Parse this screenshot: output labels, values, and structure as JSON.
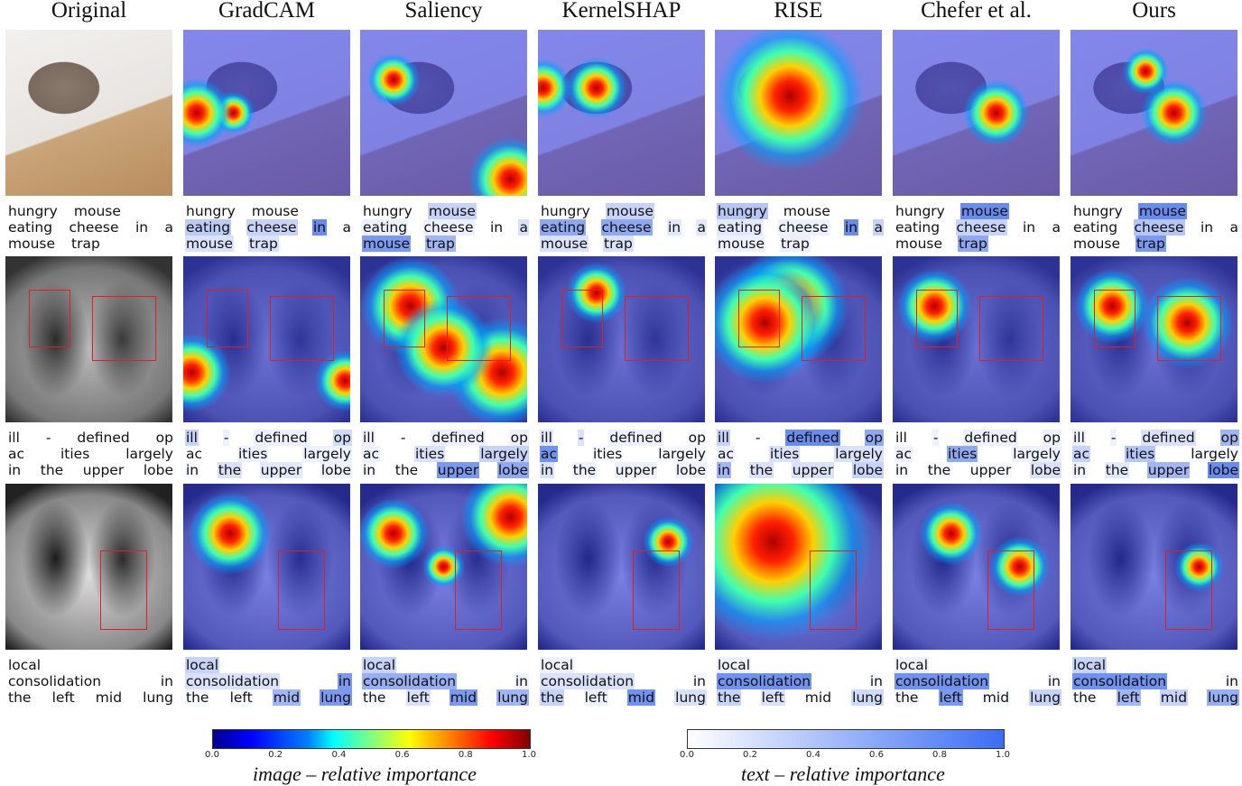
{
  "columns": [
    "Original",
    "GradCAM",
    "Saliency",
    "KernelSHAP",
    "RISE",
    "Chefer et al.",
    "Ours"
  ],
  "rows": [
    {
      "lines": [
        [
          "hungry",
          "mouse"
        ],
        [
          "eating",
          "cheese",
          "in",
          "a"
        ],
        [
          "mouse",
          "trap"
        ]
      ],
      "importance": [
        [
          0,
          0,
          0,
          0,
          0,
          0,
          0,
          0
        ],
        [
          0,
          0,
          0.35,
          0.3,
          0.8,
          0,
          0.2,
          0.2
        ],
        [
          0,
          0.3,
          0.1,
          0.1,
          0,
          0.2,
          0.7,
          0.5
        ],
        [
          0,
          0.3,
          0.6,
          0.6,
          0.15,
          0.15,
          0.2,
          0.2
        ],
        [
          0.4,
          0,
          0.15,
          0.1,
          0.8,
          0.3,
          0.1,
          0.1
        ],
        [
          0,
          0.8,
          0,
          0.3,
          0,
          0,
          0,
          0.6
        ],
        [
          0,
          0.8,
          0,
          0.4,
          0,
          0,
          0,
          0.7
        ]
      ]
    },
    {
      "lines": [
        [
          "ill",
          "-",
          "defined",
          "op"
        ],
        [
          "ac",
          "ities",
          "largely"
        ],
        [
          "in",
          "the",
          "upper",
          "lobe"
        ]
      ],
      "importance": [
        [
          0,
          0,
          0,
          0,
          0,
          0,
          0,
          0,
          0,
          0,
          0
        ],
        [
          0.3,
          0.1,
          0.1,
          0.25,
          0,
          0.1,
          0.1,
          0.05,
          0.2,
          0.15,
          0.1
        ],
        [
          0.1,
          0,
          0.1,
          0.1,
          0.1,
          0.2,
          0.3,
          0.05,
          0,
          0.7,
          0.6
        ],
        [
          0.15,
          0.2,
          0.1,
          0.05,
          0.75,
          0.05,
          0.05,
          0.2,
          0.1,
          0.1,
          0.1
        ],
        [
          0.3,
          0,
          0.8,
          0.6,
          0.1,
          0.2,
          0.2,
          0.5,
          0.2,
          0.2,
          0.3
        ],
        [
          0,
          0.1,
          0.1,
          0.1,
          0.1,
          0.6,
          0.1,
          0.05,
          0.05,
          0.05,
          0.2
        ],
        [
          0.1,
          0.1,
          0.2,
          0.5,
          0.3,
          0.4,
          0.05,
          0.1,
          0.15,
          0.5,
          0.8
        ]
      ]
    },
    {
      "lines": [
        [
          "local"
        ],
        [
          "consolidation",
          "in"
        ],
        [
          "the",
          "left",
          "mid",
          "lung"
        ]
      ],
      "importance": [
        [
          0,
          0,
          0,
          0,
          0,
          0,
          0
        ],
        [
          0.3,
          0.2,
          0.7,
          0.05,
          0.05,
          0.5,
          0.7
        ],
        [
          0.3,
          0.55,
          0.1,
          0.05,
          0.2,
          0.7,
          0.5
        ],
        [
          0.1,
          0.2,
          0.05,
          0.3,
          0.1,
          0.75,
          0.2
        ],
        [
          0.1,
          0.75,
          0.05,
          0.3,
          0.2,
          0,
          0.25
        ],
        [
          0.1,
          0.75,
          0.05,
          0.05,
          0.7,
          0.05,
          0.3
        ],
        [
          0.3,
          0.75,
          0.05,
          0.05,
          0.5,
          0.3,
          0.55
        ]
      ]
    }
  ],
  "colorbars": [
    {
      "label": "image – relative importance",
      "ticks": [
        "0.0",
        "0.2",
        "0.4",
        "0.6",
        "0.8",
        "1.0"
      ]
    },
    {
      "label": "text – relative importance",
      "ticks": [
        "0.0",
        "0.2",
        "0.4",
        "0.6",
        "0.8",
        "1.0"
      ]
    }
  ],
  "colors": {
    "text_highlight": "#3a66e8",
    "box": "#e02020"
  }
}
